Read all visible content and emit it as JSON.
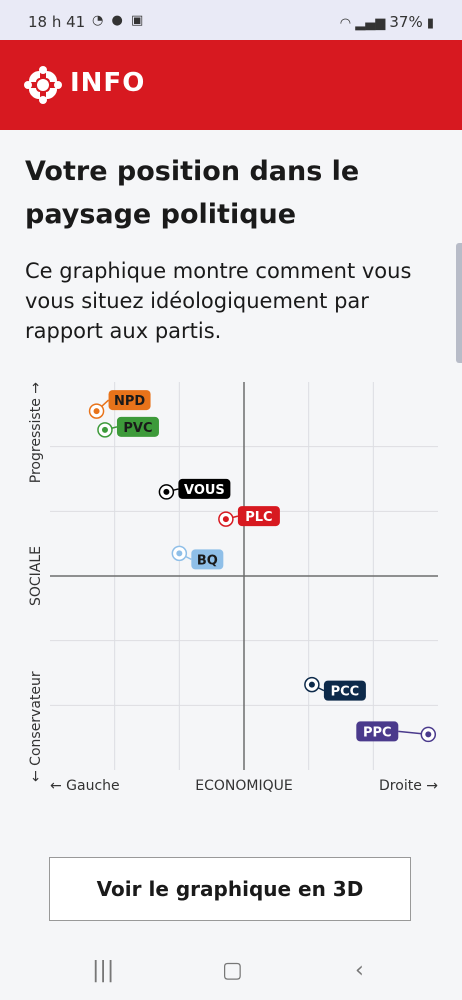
{
  "status": {
    "time": "18 h 41",
    "battery": "37%"
  },
  "header": {
    "brand": "INFO"
  },
  "page": {
    "title": "Votre position dans le paysage politique",
    "description": "Ce graphique montre comment vous vous situez idéologiquement par rapport aux partis.",
    "button_3d": "Voir le graphique en 3D"
  },
  "chart_data": {
    "type": "scatter",
    "xlabel": "ECONOMIQUE",
    "ylabel": "SOCIALE",
    "x_left_label": "← Gauche",
    "x_right_label": "Droite →",
    "y_top_label": "Progressiste →",
    "y_bottom_label": "← Conservateur",
    "xlim": [
      -3,
      3
    ],
    "ylim": [
      -3,
      3
    ],
    "grid": true,
    "points": [
      {
        "label": "NPD",
        "x": -2.28,
        "y": 2.55,
        "color": "#e8731a",
        "text_color": "#1a1a1a"
      },
      {
        "label": "PVC",
        "x": -2.15,
        "y": 2.26,
        "color": "#3d9a3a",
        "text_color": "#1a1a1a"
      },
      {
        "label": "VOUS",
        "x": -1.2,
        "y": 1.3,
        "color": "#000000",
        "text_color": "#ffffff"
      },
      {
        "label": "PLC",
        "x": -0.28,
        "y": 0.88,
        "color": "#d71920",
        "text_color": "#ffffff"
      },
      {
        "label": "BQ",
        "x": -1.0,
        "y": 0.35,
        "color": "#8fbfe8",
        "text_color": "#1a1a1a"
      },
      {
        "label": "PCC",
        "x": 1.05,
        "y": -1.68,
        "color": "#0d2a4a",
        "text_color": "#ffffff"
      },
      {
        "label": "PPC",
        "x": 2.85,
        "y": -2.45,
        "color": "#4a3a8c",
        "text_color": "#ffffff"
      }
    ]
  }
}
